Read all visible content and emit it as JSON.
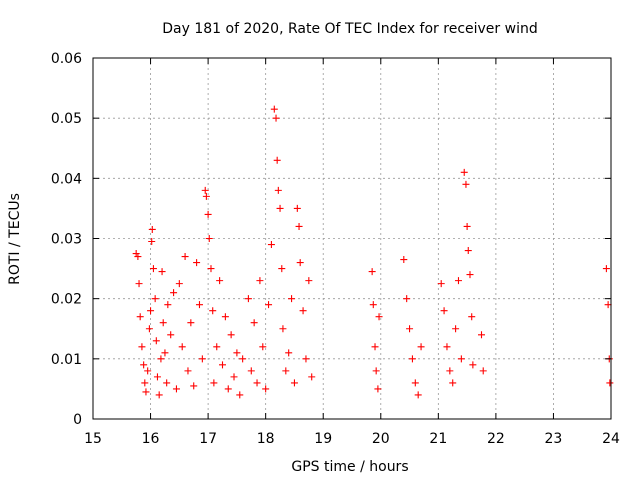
{
  "chart_data": {
    "type": "scatter",
    "title": "Day 181 of 2020, Rate Of TEC Index for receiver wind",
    "xlabel": "GPS time / hours",
    "ylabel": "ROTI / TECUs",
    "xlim": [
      15,
      24
    ],
    "ylim": [
      0,
      0.06
    ],
    "xticks": [
      "15",
      "16",
      "17",
      "18",
      "19",
      "20",
      "21",
      "22",
      "23",
      "24"
    ],
    "yticks": [
      "0",
      "0.01",
      "0.02",
      "0.03",
      "0.04",
      "0.05",
      "0.06"
    ],
    "grid": true,
    "marker": "+",
    "color": "#ff0000",
    "series": [
      {
        "points": [
          [
            15.75,
            0.0275
          ],
          [
            15.78,
            0.027
          ],
          [
            15.8,
            0.0225
          ],
          [
            15.82,
            0.017
          ],
          [
            15.85,
            0.012
          ],
          [
            15.88,
            0.009
          ],
          [
            15.9,
            0.006
          ],
          [
            15.92,
            0.0045
          ],
          [
            15.95,
            0.008
          ],
          [
            15.98,
            0.015
          ],
          [
            16.0,
            0.018
          ],
          [
            16.02,
            0.0295
          ],
          [
            16.03,
            0.0315
          ],
          [
            16.05,
            0.025
          ],
          [
            16.08,
            0.02
          ],
          [
            16.1,
            0.013
          ],
          [
            16.12,
            0.007
          ],
          [
            16.15,
            0.004
          ],
          [
            16.18,
            0.01
          ],
          [
            16.2,
            0.0245
          ],
          [
            16.22,
            0.016
          ],
          [
            16.25,
            0.011
          ],
          [
            16.28,
            0.006
          ],
          [
            16.3,
            0.019
          ],
          [
            16.35,
            0.014
          ],
          [
            16.4,
            0.021
          ],
          [
            16.45,
            0.005
          ],
          [
            16.5,
            0.0225
          ],
          [
            16.55,
            0.012
          ],
          [
            16.6,
            0.027
          ],
          [
            16.65,
            0.008
          ],
          [
            16.7,
            0.016
          ],
          [
            16.75,
            0.0055
          ],
          [
            16.8,
            0.026
          ],
          [
            16.85,
            0.019
          ],
          [
            16.9,
            0.01
          ],
          [
            16.95,
            0.038
          ],
          [
            16.97,
            0.037
          ],
          [
            17.0,
            0.034
          ],
          [
            17.02,
            0.03
          ],
          [
            17.05,
            0.025
          ],
          [
            17.08,
            0.018
          ],
          [
            17.1,
            0.006
          ],
          [
            17.15,
            0.012
          ],
          [
            17.2,
            0.023
          ],
          [
            17.25,
            0.009
          ],
          [
            17.3,
            0.017
          ],
          [
            17.35,
            0.005
          ],
          [
            17.4,
            0.014
          ],
          [
            17.45,
            0.007
          ],
          [
            17.5,
            0.011
          ],
          [
            17.55,
            0.004
          ],
          [
            17.6,
            0.01
          ],
          [
            17.7,
            0.02
          ],
          [
            17.75,
            0.008
          ],
          [
            17.8,
            0.016
          ],
          [
            17.85,
            0.006
          ],
          [
            17.9,
            0.023
          ],
          [
            17.95,
            0.012
          ],
          [
            18.0,
            0.005
          ],
          [
            18.05,
            0.019
          ],
          [
            18.1,
            0.029
          ],
          [
            18.15,
            0.0515
          ],
          [
            18.18,
            0.05
          ],
          [
            18.2,
            0.043
          ],
          [
            18.22,
            0.038
          ],
          [
            18.25,
            0.035
          ],
          [
            18.28,
            0.025
          ],
          [
            18.3,
            0.015
          ],
          [
            18.35,
            0.008
          ],
          [
            18.4,
            0.011
          ],
          [
            18.45,
            0.02
          ],
          [
            18.5,
            0.006
          ],
          [
            18.55,
            0.035
          ],
          [
            18.58,
            0.032
          ],
          [
            18.6,
            0.026
          ],
          [
            18.65,
            0.018
          ],
          [
            18.7,
            0.01
          ],
          [
            18.75,
            0.023
          ],
          [
            18.8,
            0.007
          ],
          [
            19.85,
            0.0245
          ],
          [
            19.87,
            0.019
          ],
          [
            19.9,
            0.012
          ],
          [
            19.92,
            0.008
          ],
          [
            19.95,
            0.005
          ],
          [
            19.97,
            0.017
          ],
          [
            20.4,
            0.0265
          ],
          [
            20.45,
            0.02
          ],
          [
            20.5,
            0.015
          ],
          [
            20.55,
            0.01
          ],
          [
            20.6,
            0.006
          ],
          [
            20.65,
            0.004
          ],
          [
            20.7,
            0.012
          ],
          [
            21.05,
            0.0225
          ],
          [
            21.1,
            0.018
          ],
          [
            21.15,
            0.012
          ],
          [
            21.2,
            0.008
          ],
          [
            21.25,
            0.006
          ],
          [
            21.3,
            0.015
          ],
          [
            21.35,
            0.023
          ],
          [
            21.4,
            0.01
          ],
          [
            21.45,
            0.041
          ],
          [
            21.48,
            0.039
          ],
          [
            21.5,
            0.032
          ],
          [
            21.52,
            0.028
          ],
          [
            21.55,
            0.024
          ],
          [
            21.58,
            0.017
          ],
          [
            21.6,
            0.009
          ],
          [
            21.75,
            0.014
          ],
          [
            21.78,
            0.008
          ],
          [
            23.92,
            0.025
          ],
          [
            23.95,
            0.019
          ],
          [
            23.97,
            0.01
          ],
          [
            23.98,
            0.006
          ]
        ]
      }
    ]
  }
}
